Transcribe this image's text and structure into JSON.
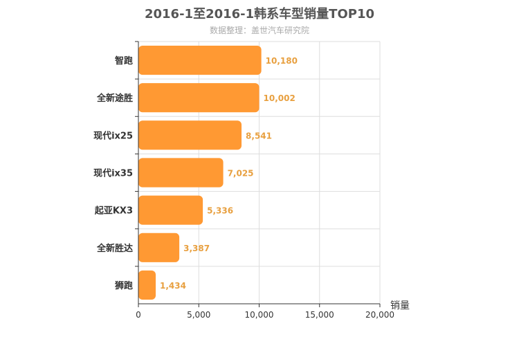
{
  "chart_data": {
    "type": "bar",
    "orientation": "horizontal",
    "title": "2016-1至2016-1韩系车型销量TOP10",
    "subtitle": "数据整理：盖世汽车研究院",
    "xlabel": "销量",
    "ylabel": "",
    "xlim": [
      0,
      20000
    ],
    "xticks": [
      "0",
      "5,000",
      "10,000",
      "15,000",
      "20,000"
    ],
    "categories": [
      "智跑",
      "全新途胜",
      "现代ix25",
      "现代ix35",
      "起亚KX3",
      "全新胜达",
      "狮跑"
    ],
    "values": [
      10180,
      10002,
      8541,
      7025,
      5336,
      3387,
      1434
    ],
    "value_labels": [
      "10,180",
      "10,002",
      "8,541",
      "7,025",
      "5,336",
      "3,387",
      "1,434"
    ],
    "grid": true,
    "colors": {
      "bar": "#ff9933",
      "value_label": "#e8a040",
      "grid": "#dddddd",
      "axis": "#333333",
      "title": "#555555",
      "subtitle": "#aaaaaa",
      "tick_label": "#333333"
    }
  }
}
